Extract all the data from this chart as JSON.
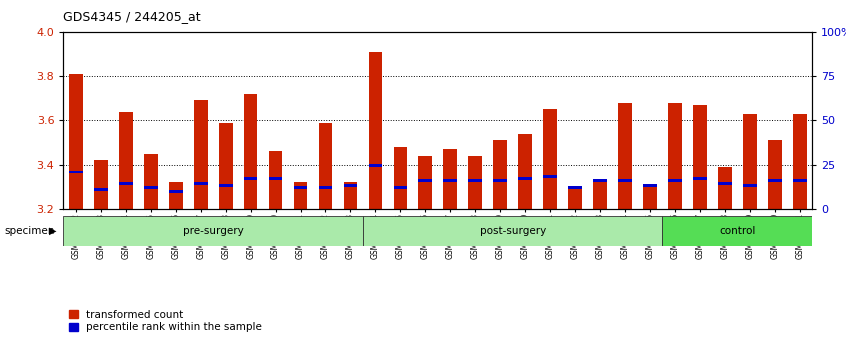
{
  "title": "GDS4345 / 244205_at",
  "samples": [
    "GSM842012",
    "GSM842013",
    "GSM842014",
    "GSM842015",
    "GSM842016",
    "GSM842017",
    "GSM842018",
    "GSM842019",
    "GSM842020",
    "GSM842021",
    "GSM842022",
    "GSM842023",
    "GSM842024",
    "GSM842025",
    "GSM842026",
    "GSM842027",
    "GSM842028",
    "GSM842029",
    "GSM842030",
    "GSM842031",
    "GSM842032",
    "GSM842033",
    "GSM842034",
    "GSM842035",
    "GSM842036",
    "GSM842037",
    "GSM842038",
    "GSM842039",
    "GSM842040",
    "GSM842041"
  ],
  "transformed_counts": [
    3.81,
    3.42,
    3.64,
    3.45,
    3.32,
    3.69,
    3.59,
    3.72,
    3.46,
    3.32,
    3.59,
    3.32,
    3.91,
    3.48,
    3.44,
    3.47,
    3.44,
    3.51,
    3.54,
    3.65,
    3.29,
    3.32,
    3.68,
    3.31,
    3.68,
    3.67,
    3.39,
    3.63,
    3.51,
    3.63
  ],
  "percentile_values": [
    3.36,
    3.28,
    3.31,
    3.29,
    3.27,
    3.31,
    3.3,
    3.33,
    3.33,
    3.29,
    3.29,
    3.3,
    3.39,
    3.29,
    3.32,
    3.32,
    3.32,
    3.32,
    3.33,
    3.34,
    3.29,
    3.32,
    3.32,
    3.3,
    3.32,
    3.33,
    3.31,
    3.3,
    3.32,
    3.32
  ],
  "groups": [
    {
      "name": "pre-surgery",
      "start": 0,
      "end": 12,
      "color": "#aaeaaa"
    },
    {
      "name": "post-surgery",
      "start": 12,
      "end": 24,
      "color": "#aaeaaa"
    },
    {
      "name": "control",
      "start": 24,
      "end": 30,
      "color": "#55dd55"
    }
  ],
  "ymin": 3.2,
  "ymax": 4.0,
  "yticks": [
    3.2,
    3.4,
    3.6,
    3.8,
    4.0
  ],
  "right_yticks": [
    0,
    25,
    50,
    75,
    100
  ],
  "right_ylabels": [
    "0",
    "25",
    "50",
    "75",
    "100%"
  ],
  "bar_color": "#cc2200",
  "percentile_color": "#0000cc",
  "grid_color": "#000000",
  "bar_width": 0.55,
  "background_color": "#ffffff",
  "ylabel_color": "#cc2200",
  "right_ylabel_color": "#0000cc",
  "legend_items": [
    "transformed count",
    "percentile rank within the sample"
  ]
}
